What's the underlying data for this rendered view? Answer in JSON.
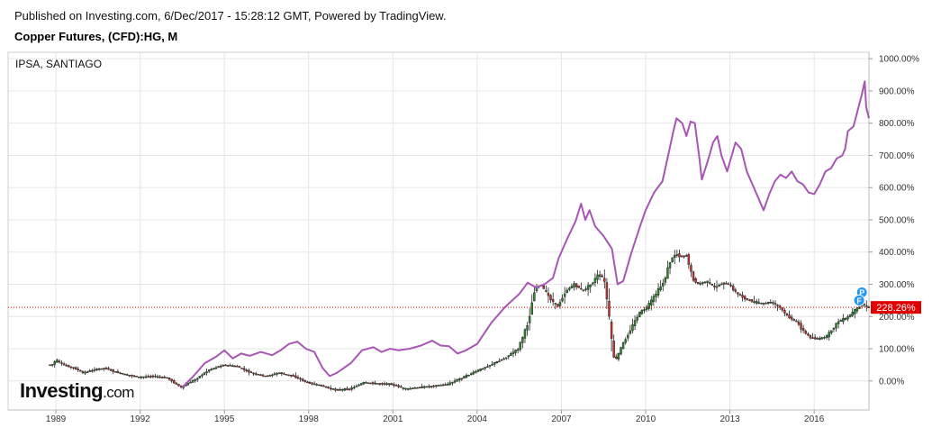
{
  "header": {
    "published": "Published on Investing.com, 6/Dec/2017 - 15:28:12 GMT, Powered by TradingView.",
    "symbol": "Copper Futures, (CFD):HG, M"
  },
  "branding": {
    "main": "Investing",
    "suffix": ".com"
  },
  "chart_data": {
    "type": "line",
    "title": "Copper Futures, (CFD):HG, M",
    "x_range": [
      1987.3,
      2017.95
    ],
    "y_range_percent": [
      -90,
      1020
    ],
    "x_ticks": [
      {
        "value": 1989,
        "label": "1989"
      },
      {
        "value": 1992,
        "label": "1992"
      },
      {
        "value": 1995,
        "label": "1995"
      },
      {
        "value": 1998,
        "label": "1998"
      },
      {
        "value": 2001,
        "label": "2001"
      },
      {
        "value": 2004,
        "label": "2004"
      },
      {
        "value": 2007,
        "label": "2007"
      },
      {
        "value": 2010,
        "label": "2010"
      },
      {
        "value": 2013,
        "label": "2013"
      },
      {
        "value": 2016,
        "label": "2016"
      }
    ],
    "y_ticks": [
      {
        "value": 0,
        "label": "0.00%"
      },
      {
        "value": 100,
        "label": "100.00%"
      },
      {
        "value": 200,
        "label": "200.00%"
      },
      {
        "value": 300,
        "label": "300.00%"
      },
      {
        "value": 400,
        "label": "400.00%"
      },
      {
        "value": 500,
        "label": "500.00%"
      },
      {
        "value": 600,
        "label": "600.00%"
      },
      {
        "value": 700,
        "label": "700.00%"
      },
      {
        "value": 800,
        "label": "800.00%"
      },
      {
        "value": 900,
        "label": "900.00%"
      },
      {
        "value": 1000,
        "label": "1000.00%"
      }
    ],
    "grid": true,
    "last_value": {
      "value": 228.26,
      "label": "228.26%",
      "color": "#e00000"
    },
    "colors": {
      "up": "#2e8b2e",
      "down": "#d23030",
      "compare": "#a855b5",
      "grid": "#e6e6e6"
    },
    "series": [
      {
        "name": "IPSA, SANTIAGO",
        "color": "#a855b5",
        "points": [
          [
            1993.5,
            -20
          ],
          [
            1993.9,
            15
          ],
          [
            1994.3,
            55
          ],
          [
            1994.7,
            75
          ],
          [
            1995.0,
            95
          ],
          [
            1995.3,
            70
          ],
          [
            1995.6,
            85
          ],
          [
            1995.9,
            78
          ],
          [
            1996.3,
            90
          ],
          [
            1996.7,
            80
          ],
          [
            1997.0,
            95
          ],
          [
            1997.3,
            115
          ],
          [
            1997.6,
            122
          ],
          [
            1997.9,
            100
          ],
          [
            1998.2,
            90
          ],
          [
            1998.5,
            40
          ],
          [
            1998.75,
            15
          ],
          [
            1999.0,
            25
          ],
          [
            1999.5,
            55
          ],
          [
            1999.9,
            95
          ],
          [
            2000.3,
            105
          ],
          [
            2000.6,
            90
          ],
          [
            2000.9,
            100
          ],
          [
            2001.2,
            95
          ],
          [
            2001.6,
            100
          ],
          [
            2002.0,
            110
          ],
          [
            2002.4,
            125
          ],
          [
            2002.7,
            110
          ],
          [
            2003.0,
            108
          ],
          [
            2003.3,
            85
          ],
          [
            2003.6,
            95
          ],
          [
            2004.0,
            115
          ],
          [
            2004.5,
            180
          ],
          [
            2005.0,
            230
          ],
          [
            2005.5,
            270
          ],
          [
            2005.8,
            305
          ],
          [
            2006.1,
            290
          ],
          [
            2006.4,
            300
          ],
          [
            2006.7,
            320
          ],
          [
            2006.9,
            380
          ],
          [
            2007.2,
            440
          ],
          [
            2007.5,
            495
          ],
          [
            2007.7,
            550
          ],
          [
            2007.85,
            500
          ],
          [
            2008.0,
            530
          ],
          [
            2008.2,
            480
          ],
          [
            2008.5,
            450
          ],
          [
            2008.8,
            410
          ],
          [
            2009.0,
            300
          ],
          [
            2009.2,
            310
          ],
          [
            2009.5,
            400
          ],
          [
            2009.8,
            480
          ],
          [
            2010.0,
            530
          ],
          [
            2010.3,
            585
          ],
          [
            2010.6,
            620
          ],
          [
            2010.8,
            700
          ],
          [
            2011.0,
            780
          ],
          [
            2011.1,
            815
          ],
          [
            2011.3,
            800
          ],
          [
            2011.45,
            760
          ],
          [
            2011.6,
            805
          ],
          [
            2011.75,
            800
          ],
          [
            2011.9,
            700
          ],
          [
            2012.0,
            625
          ],
          [
            2012.2,
            680
          ],
          [
            2012.4,
            740
          ],
          [
            2012.55,
            760
          ],
          [
            2012.7,
            700
          ],
          [
            2012.9,
            650
          ],
          [
            2013.0,
            680
          ],
          [
            2013.2,
            740
          ],
          [
            2013.4,
            720
          ],
          [
            2013.6,
            650
          ],
          [
            2013.8,
            610
          ],
          [
            2014.0,
            570
          ],
          [
            2014.2,
            530
          ],
          [
            2014.4,
            580
          ],
          [
            2014.6,
            620
          ],
          [
            2014.8,
            640
          ],
          [
            2015.0,
            630
          ],
          [
            2015.2,
            650
          ],
          [
            2015.4,
            620
          ],
          [
            2015.6,
            610
          ],
          [
            2015.8,
            585
          ],
          [
            2016.0,
            580
          ],
          [
            2016.2,
            610
          ],
          [
            2016.4,
            650
          ],
          [
            2016.6,
            660
          ],
          [
            2016.8,
            690
          ],
          [
            2017.0,
            700
          ],
          [
            2017.1,
            720
          ],
          [
            2017.2,
            775
          ],
          [
            2017.4,
            790
          ],
          [
            2017.55,
            840
          ],
          [
            2017.7,
            890
          ],
          [
            2017.8,
            930
          ],
          [
            2017.85,
            850
          ],
          [
            2017.95,
            815
          ]
        ]
      }
    ],
    "candle_path": [
      [
        1988.9,
        50
      ],
      [
        1989.05,
        65
      ],
      [
        1989.3,
        50
      ],
      [
        1989.7,
        40
      ],
      [
        1990.0,
        25
      ],
      [
        1990.4,
        35
      ],
      [
        1990.8,
        40
      ],
      [
        1991.1,
        30
      ],
      [
        1991.5,
        20
      ],
      [
        1992.0,
        12
      ],
      [
        1992.5,
        15
      ],
      [
        1993.0,
        10
      ],
      [
        1993.5,
        -20
      ],
      [
        1994.0,
        5
      ],
      [
        1994.5,
        35
      ],
      [
        1995.0,
        50
      ],
      [
        1995.5,
        45
      ],
      [
        1996.0,
        25
      ],
      [
        1996.5,
        15
      ],
      [
        1997.0,
        25
      ],
      [
        1997.5,
        15
      ],
      [
        1998.0,
        -5
      ],
      [
        1998.5,
        -15
      ],
      [
        1999.0,
        -28
      ],
      [
        1999.5,
        -25
      ],
      [
        2000.0,
        -5
      ],
      [
        2000.5,
        -8
      ],
      [
        2001.0,
        -10
      ],
      [
        2001.5,
        -25
      ],
      [
        2002.0,
        -20
      ],
      [
        2002.5,
        -15
      ],
      [
        2003.0,
        -10
      ],
      [
        2003.5,
        10
      ],
      [
        2004.0,
        30
      ],
      [
        2004.5,
        50
      ],
      [
        2005.0,
        70
      ],
      [
        2005.5,
        100
      ],
      [
        2005.85,
        180
      ],
      [
        2006.1,
        290
      ],
      [
        2006.3,
        300
      ],
      [
        2006.6,
        260
      ],
      [
        2006.9,
        230
      ],
      [
        2007.2,
        280
      ],
      [
        2007.5,
        300
      ],
      [
        2007.8,
        280
      ],
      [
        2008.1,
        300
      ],
      [
        2008.35,
        330
      ],
      [
        2008.55,
        320
      ],
      [
        2008.7,
        230
      ],
      [
        2008.85,
        100
      ],
      [
        2008.95,
        60
      ],
      [
        2009.2,
        110
      ],
      [
        2009.5,
        160
      ],
      [
        2009.8,
        210
      ],
      [
        2010.1,
        230
      ],
      [
        2010.4,
        270
      ],
      [
        2010.7,
        310
      ],
      [
        2010.9,
        370
      ],
      [
        2011.1,
        395
      ],
      [
        2011.3,
        385
      ],
      [
        2011.5,
        390
      ],
      [
        2011.7,
        320
      ],
      [
        2011.9,
        300
      ],
      [
        2012.2,
        310
      ],
      [
        2012.5,
        290
      ],
      [
        2012.8,
        305
      ],
      [
        2013.0,
        300
      ],
      [
        2013.3,
        270
      ],
      [
        2013.6,
        255
      ],
      [
        2013.9,
        245
      ],
      [
        2014.2,
        240
      ],
      [
        2014.5,
        245
      ],
      [
        2014.8,
        230
      ],
      [
        2015.1,
        200
      ],
      [
        2015.4,
        185
      ],
      [
        2015.7,
        150
      ],
      [
        2015.9,
        135
      ],
      [
        2016.2,
        130
      ],
      [
        2016.5,
        140
      ],
      [
        2016.9,
        185
      ],
      [
        2017.2,
        195
      ],
      [
        2017.5,
        220
      ],
      [
        2017.75,
        240
      ],
      [
        2017.95,
        228
      ]
    ],
    "candle_start": 1988.75,
    "candle_end": 2017.95,
    "candle_step": 0.0833,
    "markers": [
      {
        "x": 2017.7,
        "y": 275,
        "color": "#2196f3",
        "label": "P"
      },
      {
        "x": 2017.6,
        "y": 250,
        "color": "#2196f3",
        "label": "F"
      }
    ]
  }
}
